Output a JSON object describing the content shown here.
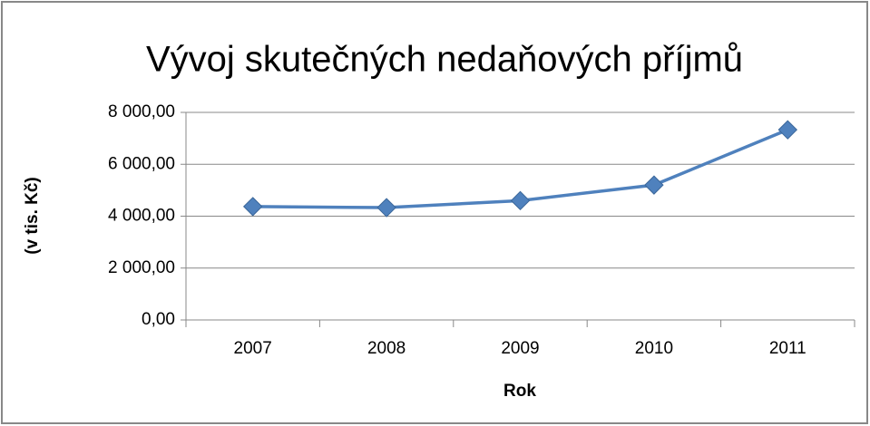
{
  "chart_data": {
    "type": "line",
    "title": "Vývoj skutečných nedaňových příjmů",
    "x_label": "Rok",
    "y_label": "(v tis. Kč)",
    "categories": [
      "2007",
      "2008",
      "2009",
      "2010",
      "2011"
    ],
    "values": [
      4370,
      4330,
      4600,
      5200,
      7330
    ],
    "color": "#4f81bd",
    "ylim": [
      0,
      8000
    ],
    "yticks": [
      {
        "value": 0,
        "label": "0,00"
      },
      {
        "value": 2000,
        "label": "2 000,00"
      },
      {
        "value": 4000,
        "label": "4 000,00"
      },
      {
        "value": 6000,
        "label": "6 000,00"
      },
      {
        "value": 8000,
        "label": "8 000,00"
      }
    ],
    "grid": true
  }
}
